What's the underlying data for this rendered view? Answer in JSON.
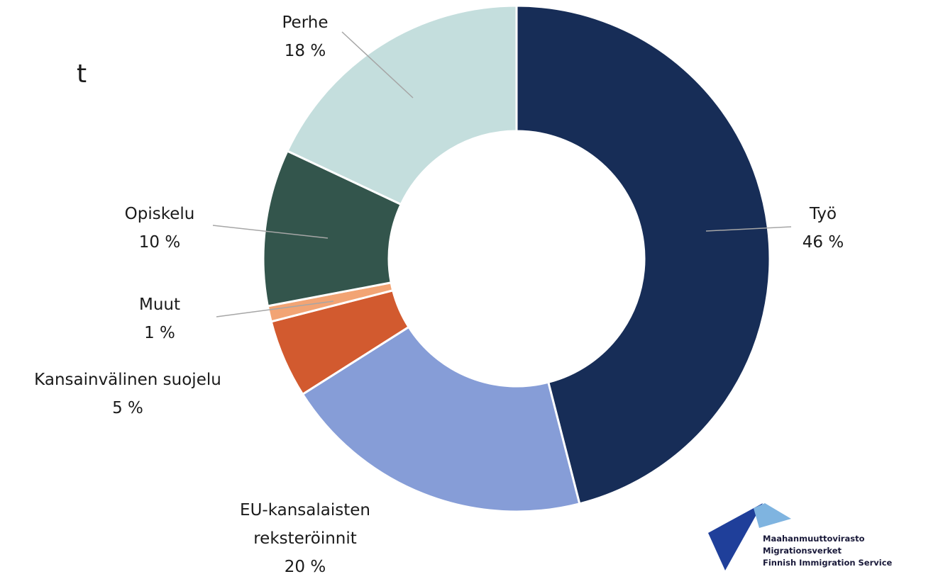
{
  "chart_data": {
    "type": "pie",
    "categories": [
      "Työ",
      "EU-kansalaisten reksteröinnit",
      "Kansainvälinen suojelu",
      "Muut",
      "Opiskelu",
      "Perhe"
    ],
    "values": [
      46,
      20,
      5,
      1,
      10,
      18
    ],
    "value_labels": [
      "46 %",
      "20 %",
      "5 %",
      "1 %",
      "10 %",
      "18 %"
    ],
    "colors": [
      "#172d57",
      "#869dd7",
      "#d25a2f",
      "#f2a474",
      "#33554c",
      "#c4dedd"
    ]
  },
  "fragment": "t",
  "logo": {
    "lines": [
      "Maahanmuuttovirasto",
      "Migrationsverket",
      "Finnish Immigration Service"
    ]
  }
}
